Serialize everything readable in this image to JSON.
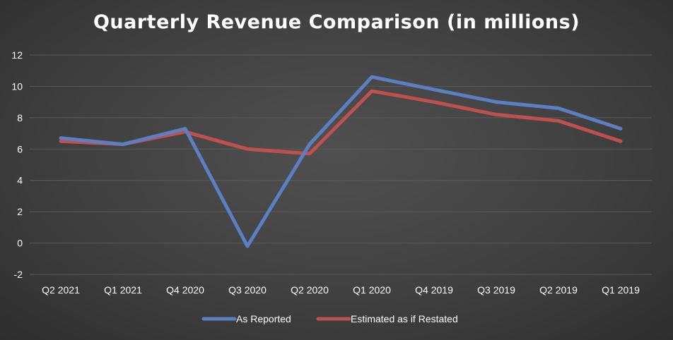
{
  "chart_data": {
    "type": "line",
    "title": "Quarterly Revenue Comparison (in millions)",
    "xlabel": "",
    "ylabel": "",
    "categories": [
      "Q2 2021",
      "Q1 2021",
      "Q4 2020",
      "Q3 2020",
      "Q2 2020",
      "Q1 2020",
      "Q4 2019",
      "Q3 2019",
      "Q2 2019",
      "Q1 2019"
    ],
    "ylim": [
      -2,
      12
    ],
    "yticks": [
      12,
      10,
      8,
      6,
      4,
      2,
      0,
      -2
    ],
    "grid": true,
    "legend_position": "bottom",
    "series": [
      {
        "name": "As Reported",
        "color": "#5b7fc0",
        "values": [
          6.7,
          6.3,
          7.3,
          -0.2,
          6.3,
          10.6,
          9.8,
          9.0,
          8.6,
          7.3
        ]
      },
      {
        "name": "Estimated as if Restated",
        "color": "#bf5050",
        "values": [
          6.5,
          6.3,
          7.1,
          6.0,
          5.7,
          9.7,
          9.0,
          8.2,
          7.8,
          6.5
        ]
      }
    ]
  }
}
